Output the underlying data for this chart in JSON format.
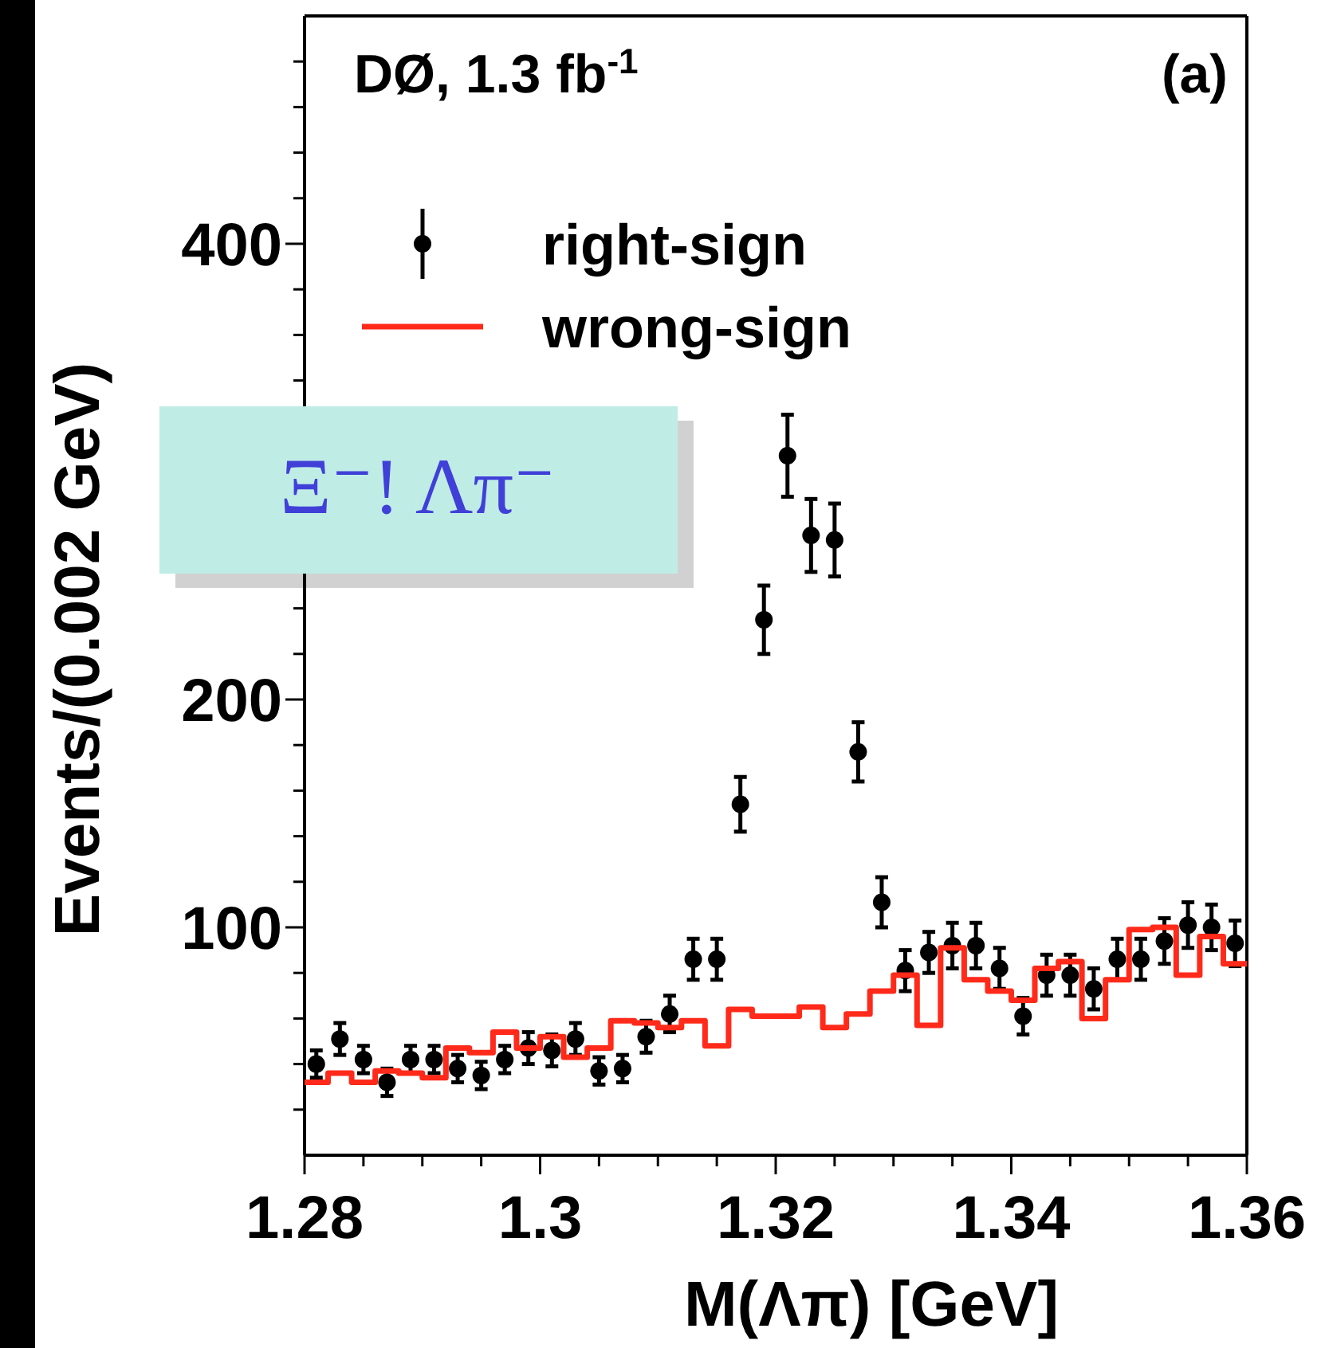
{
  "chart_data": {
    "type": "scatter",
    "xlabel": "M(Λπ) [GeV]",
    "ylabel": "Events/(0.002 GeV)",
    "annotations": [
      "DØ, 1.3 fb$^{-1}$",
      "(a)",
      "Ξ⁻! Λπ⁻"
    ],
    "xlim": [
      1.28,
      1.36
    ],
    "ylim": [
      0,
      500
    ],
    "xticks": [
      {
        "value": 1.28,
        "label": "1.28"
      },
      {
        "value": 1.285,
        "label": null
      },
      {
        "value": 1.29,
        "label": null
      },
      {
        "value": 1.295,
        "label": null
      },
      {
        "value": 1.3,
        "label": "1.3"
      },
      {
        "value": 1.305,
        "label": null
      },
      {
        "value": 1.31,
        "label": null
      },
      {
        "value": 1.315,
        "label": null
      },
      {
        "value": 1.32,
        "label": "1.32"
      },
      {
        "value": 1.325,
        "label": null
      },
      {
        "value": 1.33,
        "label": null
      },
      {
        "value": 1.335,
        "label": null
      },
      {
        "value": 1.34,
        "label": "1.34"
      },
      {
        "value": 1.345,
        "label": null
      },
      {
        "value": 1.35,
        "label": null
      },
      {
        "value": 1.355,
        "label": null
      },
      {
        "value": 1.36,
        "label": "1.36"
      }
    ],
    "yticks": [
      {
        "value": 20,
        "label": null
      },
      {
        "value": 40,
        "label": null
      },
      {
        "value": 60,
        "label": null
      },
      {
        "value": 80,
        "label": null
      },
      100,
      {
        "value": 120,
        "label": null
      },
      {
        "value": 140,
        "label": null
      },
      {
        "value": 160,
        "label": null
      },
      {
        "value": 180,
        "label": null
      },
      200,
      {
        "value": 220,
        "label": null
      },
      {
        "value": 240,
        "label": null
      },
      {
        "value": 260,
        "label": null
      },
      {
        "value": 280,
        "label": null
      },
      {
        "value": 300,
        "label": null
      },
      {
        "value": 320,
        "label": null
      },
      {
        "value": 340,
        "label": null
      },
      {
        "value": 360,
        "label": null
      },
      {
        "value": 380,
        "label": null
      },
      400,
      {
        "value": 420,
        "label": null
      },
      {
        "value": 440,
        "label": null
      },
      {
        "value": 460,
        "label": null
      },
      {
        "value": 480,
        "label": null
      }
    ],
    "legend": "top left",
    "marker": "circle",
    "series": [
      {
        "name": "right-sign",
        "type": "scatter",
        "color": "#000000",
        "x": [
          1.281,
          1.283,
          1.285,
          1.287,
          1.289,
          1.291,
          1.293,
          1.295,
          1.297,
          1.299,
          1.301,
          1.303,
          1.305,
          1.307,
          1.309,
          1.311,
          1.313,
          1.315,
          1.317,
          1.319,
          1.321,
          1.323,
          1.325,
          1.327,
          1.329,
          1.331,
          1.333,
          1.335,
          1.337,
          1.339,
          1.341,
          1.343,
          1.345,
          1.347,
          1.349,
          1.351,
          1.353,
          1.355,
          1.357,
          1.359
        ],
        "values": [
          40,
          51,
          42,
          32,
          42,
          42,
          38,
          35,
          42,
          47,
          46,
          51,
          37,
          38,
          52,
          62,
          86,
          86,
          154,
          235,
          307,
          272,
          270,
          177,
          111,
          81,
          89,
          92,
          92,
          82,
          61,
          79,
          79,
          73,
          86,
          86,
          94,
          101,
          100,
          93
        ],
        "errors": [
          6,
          7,
          6,
          6,
          6,
          6,
          6,
          6,
          6,
          7,
          7,
          7,
          6,
          6,
          7,
          8,
          9,
          9,
          12,
          15,
          18,
          16,
          16,
          13,
          11,
          9,
          9,
          10,
          10,
          9,
          8,
          9,
          9,
          9,
          9,
          9,
          10,
          10,
          10,
          10
        ]
      },
      {
        "name": "wrong-sign",
        "type": "histogram",
        "color": "#ff2a1a",
        "bins": [
          1.28,
          1.282,
          1.284,
          1.286,
          1.288,
          1.29,
          1.292,
          1.294,
          1.296,
          1.298,
          1.3,
          1.302,
          1.304,
          1.306,
          1.308,
          1.31,
          1.312,
          1.314,
          1.316,
          1.318,
          1.32,
          1.322,
          1.324,
          1.326,
          1.328,
          1.33,
          1.332,
          1.334,
          1.336,
          1.338,
          1.34,
          1.342,
          1.344,
          1.346,
          1.348,
          1.35,
          1.352,
          1.354,
          1.356,
          1.358,
          1.36
        ],
        "values": [
          32,
          36,
          32,
          37,
          36,
          34,
          47,
          45,
          54,
          47,
          52,
          43,
          47,
          59,
          58,
          56,
          59,
          48,
          64,
          61,
          61,
          65,
          56,
          62,
          72,
          79,
          57,
          91,
          77,
          72,
          68,
          82,
          85,
          60,
          77,
          99,
          100,
          79,
          96,
          84
        ]
      }
    ]
  }
}
